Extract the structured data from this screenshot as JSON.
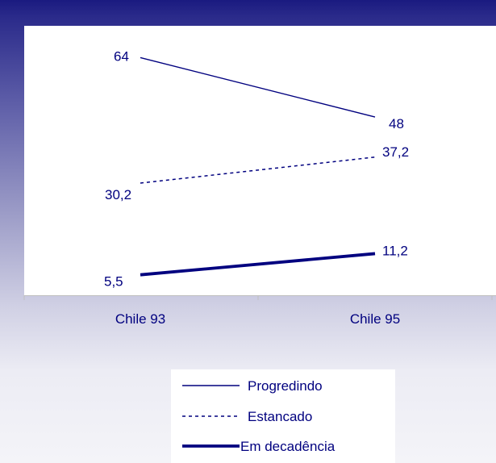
{
  "chart_data": {
    "type": "line",
    "categories": [
      "Chile 93",
      "Chile 95"
    ],
    "series": [
      {
        "name": "Progredindo",
        "values": [
          64,
          48
        ],
        "labels": [
          "64",
          "48"
        ],
        "style": "thin-solid"
      },
      {
        "name": "Estancado",
        "values": [
          30.2,
          37.2
        ],
        "labels": [
          "30,2",
          "37,2"
        ],
        "style": "dashed"
      },
      {
        "name": "Em decadência",
        "values": [
          5.5,
          11.2
        ],
        "labels": [
          "5,5",
          "11,2"
        ],
        "style": "thick-solid"
      }
    ],
    "ylim": [
      0,
      72
    ],
    "grid": false,
    "legend_position": "bottom-center",
    "colors": {
      "line": "#00007f",
      "text": "#00007f",
      "axis": "#c0c0c0"
    }
  }
}
